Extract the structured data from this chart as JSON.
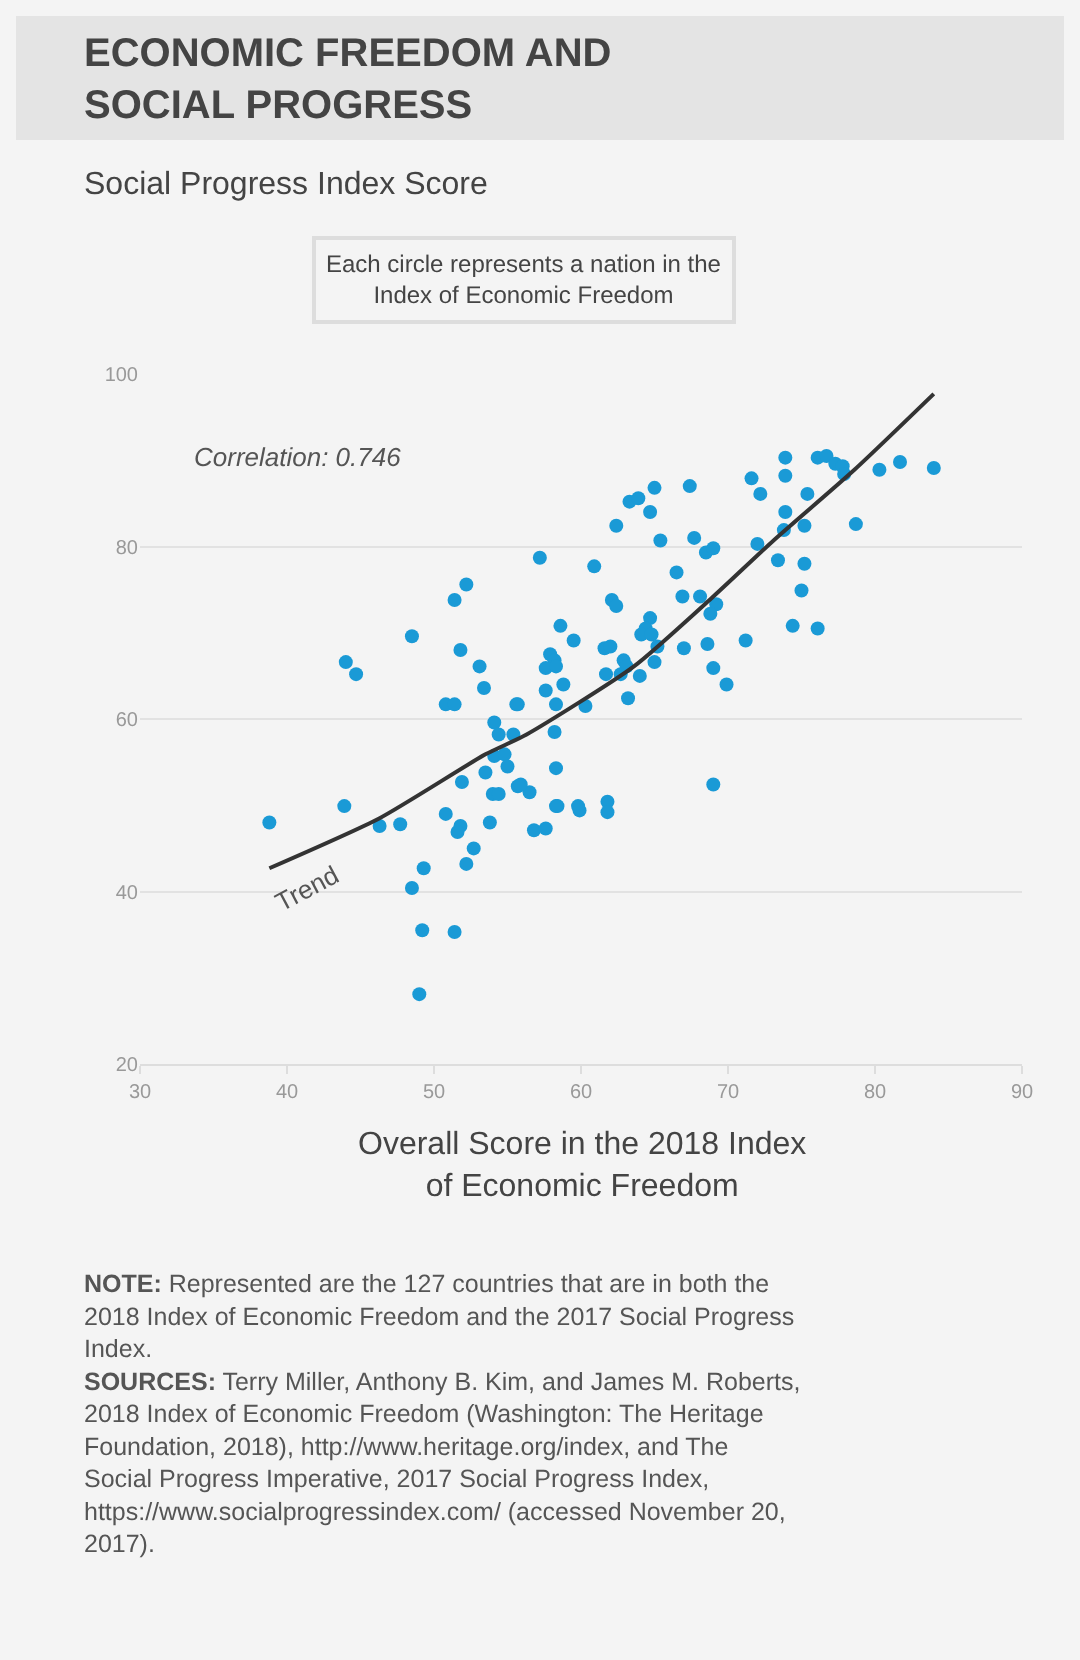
{
  "chart_data": {
    "type": "scatter",
    "title": "ECONOMIC FREEDOM AND SOCIAL PROGRESS",
    "subtitle": "Social Progress Index Score",
    "xlabel": "Overall Score in the 2018 Index of Economic Freedom",
    "xlim": [
      30,
      90
    ],
    "xticks": [
      30,
      40,
      50,
      60,
      70,
      80,
      90
    ],
    "ylim": [
      20,
      100
    ],
    "yticks": [
      20,
      40,
      60,
      80,
      100
    ],
    "grid": "y",
    "legend": false,
    "marker": "circle",
    "annotations": [
      "Each circle represents a nation in the Index of Economic Freedom",
      "Correlation: 0.746",
      "NOTE: Represented are the 127 countries that are in both the 2018 Index of Economic Freedom and the 2017 Social Progress Index.",
      "SOURCES: Terry Miller, Anthony B. Kim, and James M. Roberts, 2018 Index of Economic Freedom (Washington: The Heritage Foundation, 2018), http://www.heritage.org/index, and The Social Progress Imperative, 2017 Social Progress Index, https://www.socialprogressindex.com/ (accessed November 20, 2017)."
    ],
    "series": [
      {
        "color": "#1a9ad6",
        "x": [
          57.2,
          52.2,
          51.4,
          48.5,
          44.0,
          44.7,
          51.8,
          53.1,
          53.4,
          50.8,
          51.4,
          54.1,
          55.7,
          57.6,
          57.9,
          58.6,
          60.9,
          62.4,
          63.3,
          63.9,
          65.0,
          67.4,
          64.7,
          65.4,
          67.7,
          68.5,
          69.0,
          66.5,
          62.1,
          62.4,
          66.9,
          68.1,
          69.2,
          68.8,
          64.7,
          64.4,
          64.1,
          64.8,
          59.5,
          61.6,
          62.0,
          65.2,
          67.0,
          68.6,
          71.2,
          58.2,
          57.6,
          58.3,
          62.9,
          63.1,
          62.7,
          64.0,
          65.0,
          61.7,
          58.8,
          60.3,
          63.2,
          69.0,
          69.9,
          55.6,
          58.3,
          58.2,
          55.4,
          73.9,
          76.1,
          76.7,
          77.3,
          77.8,
          73.9,
          71.6,
          72.2,
          75.4,
          77.9,
          80.3,
          81.7,
          84.0,
          73.9,
          73.8,
          75.2,
          72.0,
          78.7,
          73.4,
          75.2,
          75.0,
          74.4,
          76.1,
          38.8,
          43.9,
          46.3,
          47.7,
          48.5,
          49.3,
          49.2,
          51.4,
          49.0,
          50.8,
          51.8,
          51.6,
          52.7,
          52.2,
          53.8,
          51.9,
          53.5,
          54.1,
          54.8,
          55.0,
          54.0,
          54.4,
          55.7,
          56.5,
          54.4,
          58.3,
          58.3,
          56.8,
          57.6,
          55.9,
          69.0,
          58.4,
          59.8,
          59.9,
          61.8,
          61.8
        ],
        "values": [
          78.7,
          75.6,
          73.8,
          69.6,
          66.6,
          65.2,
          68.0,
          66.1,
          63.6,
          61.7,
          61.7,
          59.6,
          61.7,
          63.3,
          67.5,
          70.8,
          77.7,
          82.4,
          85.2,
          85.6,
          86.8,
          87.0,
          84.0,
          80.7,
          81.0,
          79.3,
          79.8,
          77.0,
          73.8,
          73.1,
          74.2,
          74.2,
          73.3,
          72.2,
          71.7,
          70.5,
          69.8,
          69.8,
          69.1,
          68.2,
          68.4,
          68.4,
          68.2,
          68.7,
          69.1,
          66.8,
          65.9,
          66.1,
          66.8,
          66.1,
          65.2,
          65.0,
          66.6,
          65.2,
          64.0,
          61.5,
          62.4,
          65.9,
          64.0,
          61.7,
          61.7,
          58.5,
          58.2,
          90.3,
          90.3,
          90.5,
          89.6,
          89.3,
          88.2,
          87.9,
          86.1,
          86.1,
          88.4,
          88.9,
          89.8,
          89.1,
          84.0,
          81.9,
          82.4,
          80.3,
          82.6,
          78.4,
          78.0,
          74.9,
          70.8,
          70.5,
          48.0,
          49.9,
          47.6,
          47.8,
          40.4,
          42.7,
          35.5,
          35.3,
          28.1,
          49.0,
          47.6,
          46.9,
          45.0,
          43.2,
          48.0,
          52.7,
          53.8,
          55.7,
          55.9,
          54.5,
          51.3,
          51.3,
          52.2,
          51.5,
          58.2,
          54.3,
          49.9,
          47.1,
          47.3,
          52.4,
          52.4,
          49.9,
          49.9,
          49.4,
          50.4,
          49.2
        ]
      },
      {
        "type": "line",
        "name": "Trend",
        "color": "#333333",
        "marker": "none",
        "line_style": "solid",
        "x": [
          38.8,
          46.3,
          53.5,
          56.3,
          63.6,
          69.0,
          73.1,
          78.6,
          84.0
        ],
        "values": [
          42.7,
          48.5,
          55.9,
          58.2,
          66.1,
          74.2,
          80.7,
          88.9,
          97.7
        ]
      }
    ]
  }
}
